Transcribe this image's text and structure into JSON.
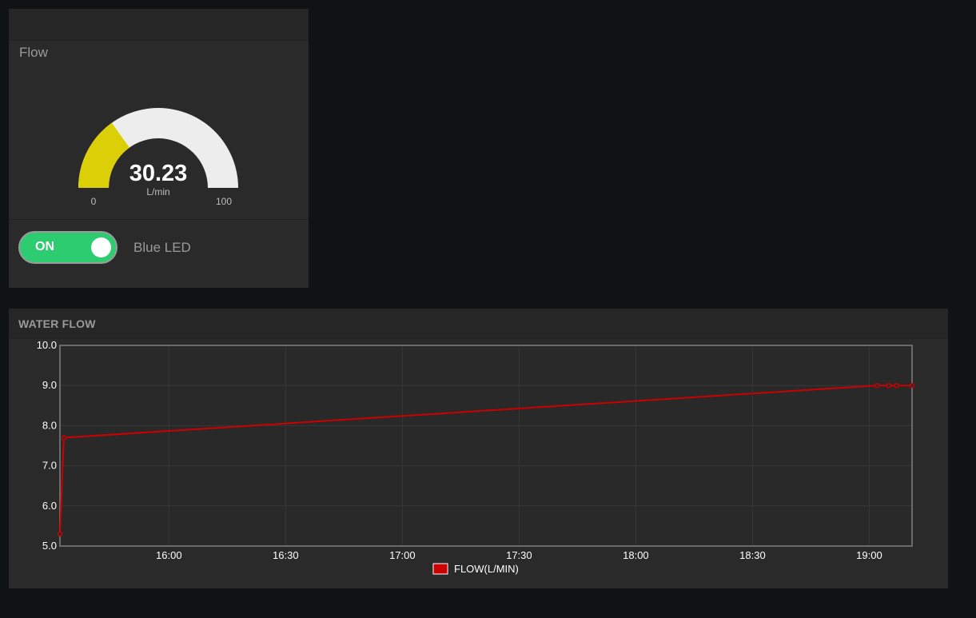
{
  "flow_card": {
    "title": "Flow",
    "gauge": {
      "value": "30.23",
      "value_num": 30.23,
      "unit": "L/min",
      "min": "0",
      "max": "100",
      "min_num": 0,
      "max_num": 100,
      "fill_color": "#dbcf07",
      "track_color": "#eeedee"
    },
    "toggle": {
      "state_label": "ON",
      "on": true,
      "name": "Blue LED",
      "color": "#2ecc71"
    }
  },
  "chart_card": {
    "title": "WATER FLOW"
  },
  "chart_data": {
    "type": "line",
    "title": "WATER FLOW",
    "xlabel": "",
    "ylabel": "",
    "ylim": [
      5.0,
      10.0
    ],
    "xlim": [
      "15:32",
      "19:11"
    ],
    "y_ticks": [
      "5.0",
      "6.0",
      "7.0",
      "8.0",
      "9.0",
      "10.0"
    ],
    "x_ticks": [
      "16:00",
      "16:30",
      "17:00",
      "17:30",
      "18:00",
      "18:30",
      "19:00"
    ],
    "grid": true,
    "legend": "bottom-center",
    "series": [
      {
        "name": "FLOW(L/MIN)",
        "color": "#cc0000",
        "points": [
          {
            "x": "15:32",
            "y": 5.3
          },
          {
            "x": "15:33",
            "y": 7.7
          },
          {
            "x": "19:02",
            "y": 9.0
          },
          {
            "x": "19:05",
            "y": 9.0
          },
          {
            "x": "19:07",
            "y": 9.0
          },
          {
            "x": "19:11",
            "y": 9.0
          }
        ]
      }
    ]
  }
}
